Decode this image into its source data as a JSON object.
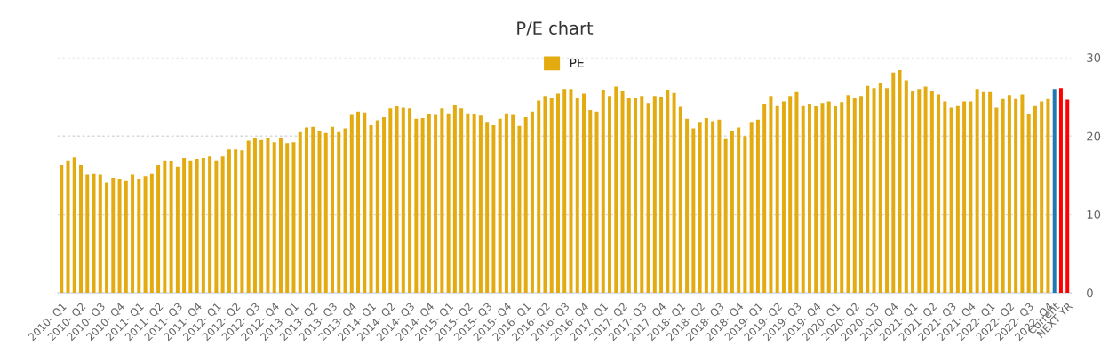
{
  "chart_data": {
    "type": "bar",
    "title": "P/E chart",
    "categories": [
      "2010- Q1",
      null,
      null,
      "2010- Q2",
      null,
      null,
      "2010- Q3",
      null,
      null,
      "2010- Q4",
      null,
      null,
      "2011- Q1",
      null,
      null,
      "2011- Q2",
      null,
      null,
      "2011- Q3",
      null,
      null,
      "2011- Q4",
      null,
      null,
      "2012- Q1",
      null,
      null,
      "2012- Q2",
      null,
      null,
      "2012- Q3",
      null,
      null,
      "2012- Q4",
      null,
      null,
      "2013- Q1",
      null,
      null,
      "2013- Q2",
      null,
      null,
      "2013- Q3",
      null,
      null,
      "2013- Q4",
      null,
      null,
      "2014- Q1",
      null,
      null,
      "2014- Q2",
      null,
      null,
      "2014- Q3",
      null,
      null,
      "2014- Q4",
      null,
      null,
      "2015- Q1",
      null,
      null,
      "2015- Q2",
      null,
      null,
      "2015- Q3",
      null,
      null,
      "2015- Q4",
      null,
      null,
      "2016- Q1",
      null,
      null,
      "2016- Q2",
      null,
      null,
      "2016- Q3",
      null,
      null,
      "2016- Q4",
      null,
      null,
      "2017- Q1",
      null,
      null,
      "2017- Q2",
      null,
      null,
      "2017- Q3",
      null,
      null,
      "2017- Q4",
      null,
      null,
      "2018- Q1",
      null,
      null,
      "2018- Q2",
      null,
      null,
      "2018- Q3",
      null,
      null,
      "2018- Q4",
      null,
      null,
      "2019- Q1",
      null,
      null,
      "2019- Q2",
      null,
      null,
      "2019- Q3",
      null,
      null,
      "2019- Q4",
      null,
      null,
      "2020- Q1",
      null,
      null,
      "2020- Q2",
      null,
      null,
      "2020- Q3",
      null,
      null,
      "2020- Q4",
      null,
      null,
      "2021- Q1",
      null,
      null,
      "2021- Q2",
      null,
      null,
      "2021- Q3",
      null,
      null,
      "2021- Q4",
      null,
      null,
      "2022- Q1",
      null,
      null,
      "2022- Q2",
      null,
      null,
      "2022- Q3",
      null,
      null,
      "2022- Q4",
      "Current",
      null,
      "NEXT YR"
    ],
    "series": [
      {
        "name": "PE",
        "color": "#e3ab10",
        "values": [
          16.3,
          16.9,
          17.3,
          16.3,
          15.1,
          15.2,
          15.1,
          14.1,
          14.6,
          14.5,
          14.3,
          15.1,
          14.5,
          14.9,
          15.2,
          16.3,
          16.9,
          16.8,
          16.1,
          17.2,
          16.9,
          17.1,
          17.2,
          17.4,
          16.9,
          17.4,
          18.3,
          18.3,
          18.2,
          19.4,
          19.7,
          19.5,
          19.7,
          19.2,
          19.8,
          19.1,
          19.2,
          20.5,
          21.1,
          21.2,
          20.6,
          20.4,
          21.2,
          20.5,
          21.0,
          22.7,
          23.1,
          23.0,
          21.4,
          22.0,
          22.4,
          23.5,
          23.8,
          23.6,
          23.5,
          22.2,
          22.3,
          22.8,
          22.7,
          23.5,
          22.9,
          24.0,
          23.5,
          22.9,
          22.8,
          22.6,
          21.7,
          21.4,
          22.2,
          22.9,
          22.7,
          21.3,
          22.4,
          23.1,
          24.5,
          25.1,
          24.9,
          25.4,
          26.0,
          26.0,
          24.9,
          25.4,
          23.3,
          23.1,
          25.9,
          25.1,
          26.3,
          25.7,
          24.9,
          24.8,
          25.1,
          24.2,
          25.1,
          25.0,
          25.9,
          25.5,
          23.7,
          22.2,
          21.0,
          21.7,
          22.3,
          21.9,
          22.1,
          19.6,
          20.6,
          21.1,
          20.0,
          21.7,
          22.1,
          24.1,
          25.1,
          23.9,
          24.4,
          25.1,
          25.6,
          23.9,
          24.1,
          23.8,
          24.2,
          24.4,
          23.8,
          24.3,
          25.2,
          24.8,
          25.1,
          26.4,
          26.1,
          26.7,
          26.1,
          28.1,
          28.4,
          27.1,
          25.7,
          26.0,
          26.3,
          25.8,
          25.3,
          24.4,
          23.6,
          23.9,
          24.4,
          24.4,
          26.0,
          25.6,
          25.6,
          23.6,
          24.7,
          25.2,
          24.7,
          25.3,
          22.8,
          23.9,
          24.4,
          24.7,
          null,
          null,
          null
        ]
      },
      {
        "color": "#1f77b4",
        "values": [
          null,
          null,
          null,
          null,
          null,
          null,
          null,
          null,
          null,
          null,
          null,
          null,
          null,
          null,
          null,
          null,
          null,
          null,
          null,
          null,
          null,
          null,
          null,
          null,
          null,
          null,
          null,
          null,
          null,
          null,
          null,
          null,
          null,
          null,
          null,
          null,
          null,
          null,
          null,
          null,
          null,
          null,
          null,
          null,
          null,
          null,
          null,
          null,
          null,
          null,
          null,
          null,
          null,
          null,
          null,
          null,
          null,
          null,
          null,
          null,
          null,
          null,
          null,
          null,
          null,
          null,
          null,
          null,
          null,
          null,
          null,
          null,
          null,
          null,
          null,
          null,
          null,
          null,
          null,
          null,
          null,
          null,
          null,
          null,
          null,
          null,
          null,
          null,
          null,
          null,
          null,
          null,
          null,
          null,
          null,
          null,
          null,
          null,
          null,
          null,
          null,
          null,
          null,
          null,
          null,
          null,
          null,
          null,
          null,
          null,
          null,
          null,
          null,
          null,
          null,
          null,
          null,
          null,
          null,
          null,
          null,
          null,
          null,
          null,
          null,
          null,
          null,
          null,
          null,
          null,
          null,
          null,
          null,
          null,
          null,
          null,
          null,
          null,
          null,
          null,
          null,
          null,
          null,
          null,
          null,
          null,
          null,
          null,
          null,
          null,
          null,
          null,
          null,
          null,
          26.0,
          null,
          null
        ]
      },
      {
        "color": "#ff0000",
        "values": [
          null,
          null,
          null,
          null,
          null,
          null,
          null,
          null,
          null,
          null,
          null,
          null,
          null,
          null,
          null,
          null,
          null,
          null,
          null,
          null,
          null,
          null,
          null,
          null,
          null,
          null,
          null,
          null,
          null,
          null,
          null,
          null,
          null,
          null,
          null,
          null,
          null,
          null,
          null,
          null,
          null,
          null,
          null,
          null,
          null,
          null,
          null,
          null,
          null,
          null,
          null,
          null,
          null,
          null,
          null,
          null,
          null,
          null,
          null,
          null,
          null,
          null,
          null,
          null,
          null,
          null,
          null,
          null,
          null,
          null,
          null,
          null,
          null,
          null,
          null,
          null,
          null,
          null,
          null,
          null,
          null,
          null,
          null,
          null,
          null,
          null,
          null,
          null,
          null,
          null,
          null,
          null,
          null,
          null,
          null,
          null,
          null,
          null,
          null,
          null,
          null,
          null,
          null,
          null,
          null,
          null,
          null,
          null,
          null,
          null,
          null,
          null,
          null,
          null,
          null,
          null,
          null,
          null,
          null,
          null,
          null,
          null,
          null,
          null,
          null,
          null,
          null,
          null,
          null,
          null,
          null,
          null,
          null,
          null,
          null,
          null,
          null,
          null,
          null,
          null,
          null,
          null,
          null,
          null,
          null,
          null,
          null,
          null,
          null,
          null,
          null,
          null,
          null,
          null,
          null,
          26.1,
          24.6
        ]
      }
    ],
    "ylim": [
      0,
      30
    ],
    "yticks": [
      0,
      10,
      20,
      30
    ],
    "grid": "y",
    "legend": "top"
  }
}
